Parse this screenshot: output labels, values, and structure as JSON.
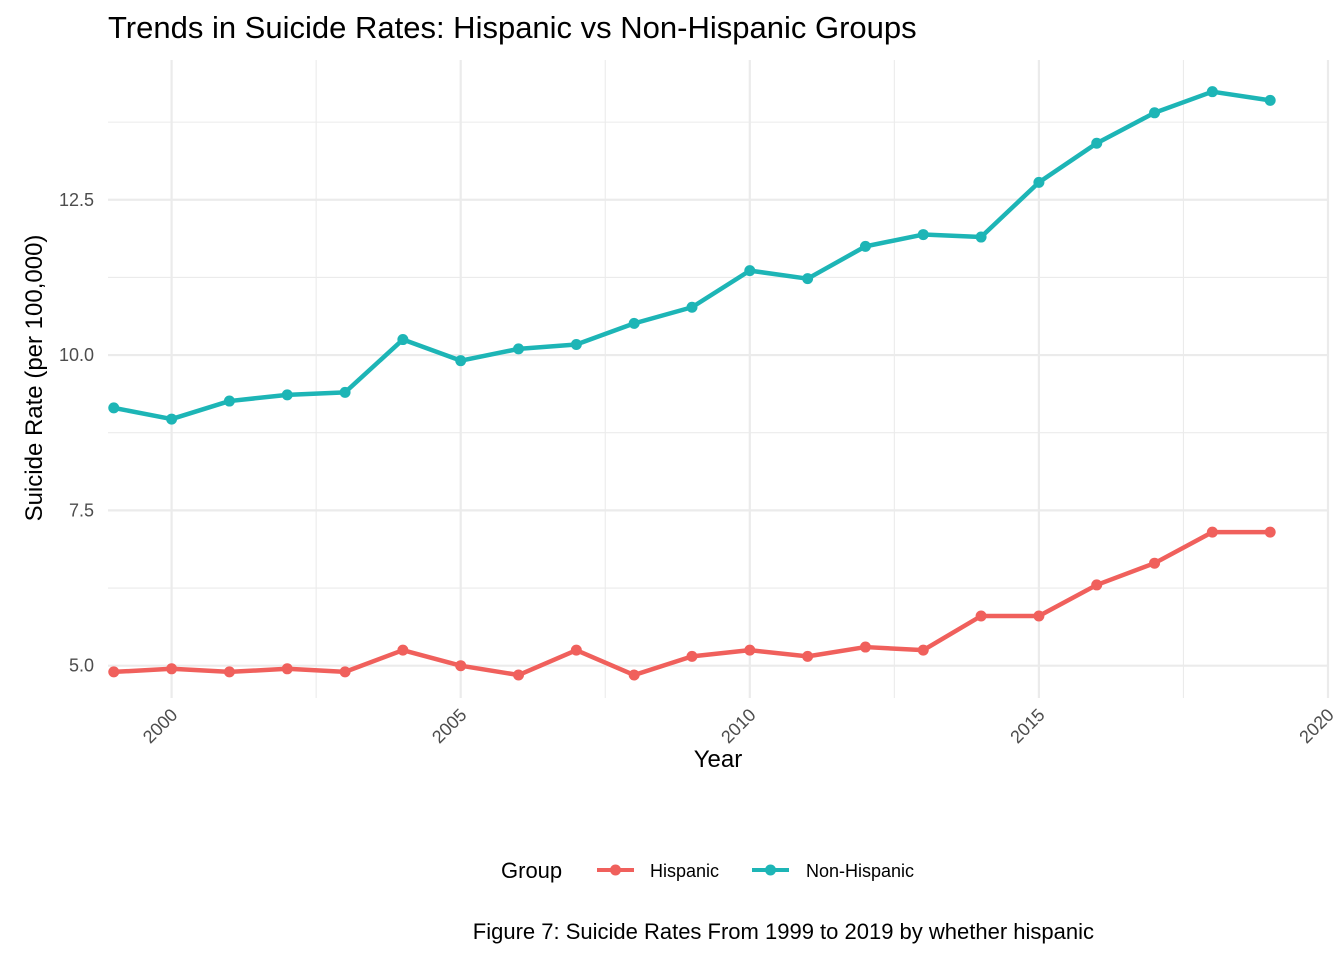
{
  "chart_data": {
    "type": "line",
    "title": "Trends in Suicide Rates: Hispanic vs Non-Hispanic Groups",
    "xlabel": "Year",
    "ylabel": "Suicide Rate (per 100,000)",
    "caption": "Figure 7: Suicide Rates From 1999 to 2019 by whether hispanic",
    "legend_title": "Group",
    "legend_position": "bottom",
    "grid": true,
    "xlim": [
      1998.9,
      2020
    ],
    "ylim": [
      4.48,
      14.75
    ],
    "x_ticks": [
      2000,
      2005,
      2010,
      2015,
      2020
    ],
    "x_tick_labels": [
      "2000",
      "2005",
      "2010",
      "2015",
      "2020"
    ],
    "y_ticks": [
      5.0,
      7.5,
      10.0,
      12.5
    ],
    "y_tick_labels": [
      "5.0",
      "7.5",
      "10.0",
      "12.5"
    ],
    "x": [
      1999,
      2000,
      2001,
      2002,
      2003,
      2004,
      2005,
      2006,
      2007,
      2008,
      2009,
      2010,
      2011,
      2012,
      2013,
      2014,
      2015,
      2016,
      2017,
      2018,
      2019
    ],
    "series": [
      {
        "name": "Hispanic",
        "color": "#F0605C",
        "values": [
          4.9,
          4.95,
          4.9,
          4.95,
          4.9,
          5.25,
          5.0,
          4.85,
          5.25,
          4.85,
          5.15,
          5.25,
          5.15,
          5.3,
          5.25,
          5.8,
          5.8,
          6.3,
          6.65,
          7.15,
          7.15
        ]
      },
      {
        "name": "Non-Hispanic",
        "color": "#1DB5B6",
        "values": [
          9.15,
          8.97,
          9.26,
          9.36,
          9.4,
          10.25,
          9.91,
          10.1,
          10.17,
          10.51,
          10.77,
          11.36,
          11.23,
          11.75,
          11.94,
          11.9,
          12.78,
          13.41,
          13.9,
          14.24,
          14.1
        ]
      }
    ]
  }
}
